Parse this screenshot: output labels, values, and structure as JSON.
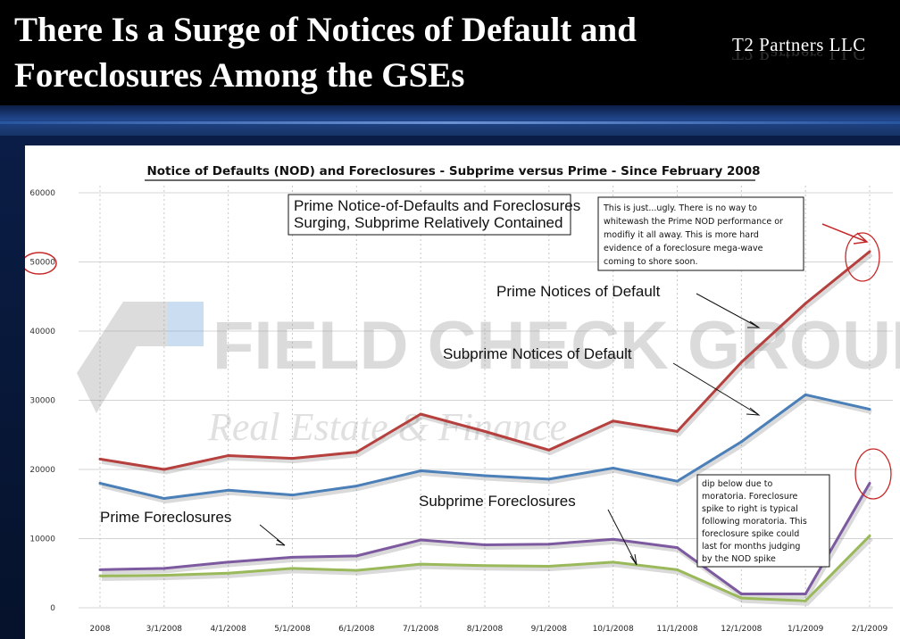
{
  "slide": {
    "title_line1": "There Is a Surge of Notices of Default and",
    "title_line2": "Foreclosures Among the GSEs",
    "logo": "T2 Partners LLC"
  },
  "watermark": {
    "line1": "FIELD CHECK GROUP",
    "line2": "Real Estate & Finance"
  },
  "chart_data": {
    "type": "line",
    "title": "Notice of Defaults (NOD) and Foreclosures - Subprime versus Prime - Since February 2008",
    "categories": [
      "2008",
      "3/1/2008",
      "4/1/2008",
      "5/1/2008",
      "6/1/2008",
      "7/1/2008",
      "8/1/2008",
      "9/1/2008",
      "10/1/2008",
      "11/1/2008",
      "12/1/2008",
      "1/1/2009",
      "2/1/2009"
    ],
    "y_ticks": [
      "60000",
      "50000",
      "40000",
      "30000",
      "20000",
      "10000",
      "0"
    ],
    "ylim": [
      0,
      60000
    ],
    "grid": true,
    "series": [
      {
        "name": "Prime Notices of Default",
        "color": "#b5403e",
        "values": [
          21500,
          20000,
          22000,
          21600,
          22500,
          28000,
          25500,
          22800,
          27000,
          25500,
          35500,
          44000,
          51500
        ]
      },
      {
        "name": "Subprime Notices of Default",
        "color": "#4a7fb8",
        "values": [
          18000,
          15800,
          17000,
          16300,
          17600,
          19800,
          19100,
          18600,
          20200,
          18300,
          24000,
          30800,
          28700
        ]
      },
      {
        "name": "Prime Foreclosures",
        "color": "#7d5aa0",
        "values": [
          5500,
          5700,
          6600,
          7300,
          7500,
          9800,
          9100,
          9200,
          9900,
          8700,
          2000,
          2000,
          18000
        ]
      },
      {
        "name": "Subprime Foreclosures",
        "color": "#9ab95a",
        "values": [
          4600,
          4700,
          5000,
          5700,
          5400,
          6300,
          6100,
          6000,
          6600,
          5500,
          1400,
          1000,
          10400
        ]
      }
    ],
    "annotations": {
      "headline_box": [
        "Prime Notice-of-Defaults and Foreclosures",
        "Surging, Subprime Relatively Contained"
      ],
      "ugly_box": [
        "This is just...ugly. There is no way to",
        "whitewash the Prime NOD performance or",
        "modifiy it all away. This is more hard",
        "evidence of a foreclosure mega-wave",
        "coming to shore soon."
      ],
      "moratoria_box": [
        "dip below due to",
        "moratoria. Foreclosure",
        "spike to right is typical",
        "following moratoria. This",
        "foreclosure spike could",
        "last for months judging",
        "by the NOD spike"
      ],
      "label_prime_nod": "Prime Notices of Default",
      "label_subprime_nod": "Subprime Notices of Default",
      "label_prime_fc": "Prime Foreclosures",
      "label_subprime_fc": "Subprime Foreclosures"
    }
  }
}
